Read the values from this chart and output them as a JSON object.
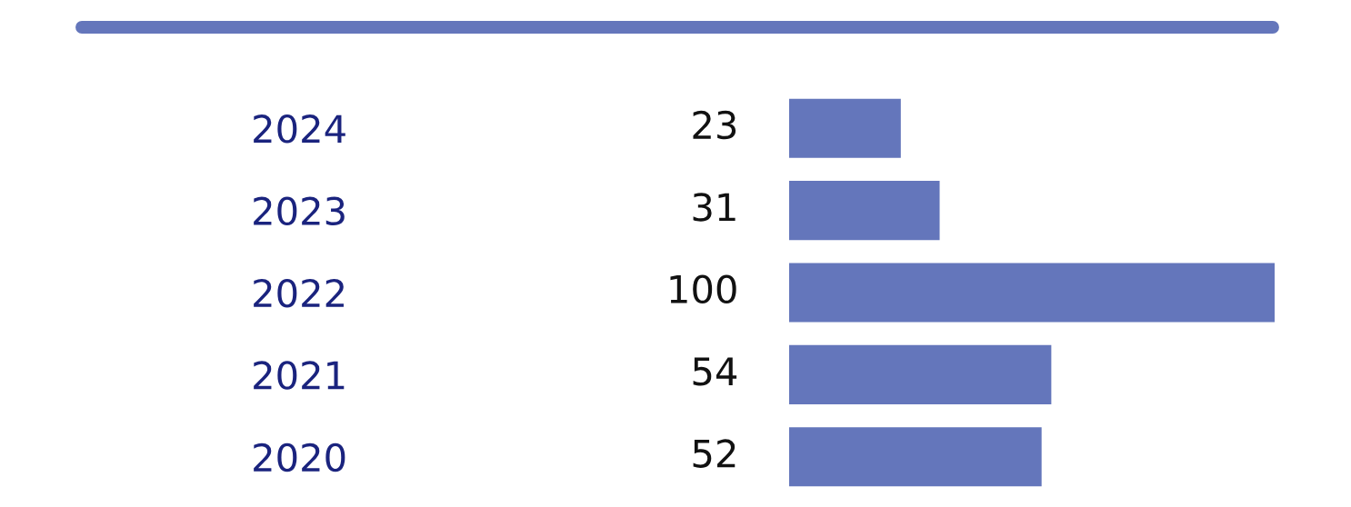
{
  "chart_data": {
    "type": "bar",
    "orientation": "horizontal",
    "categories": [
      "2024",
      "2023",
      "2022",
      "2021",
      "2020"
    ],
    "values": [
      23,
      31,
      100,
      54,
      52
    ],
    "color": "#6476bb",
    "data_labels": true,
    "grid": false,
    "legend": false
  }
}
